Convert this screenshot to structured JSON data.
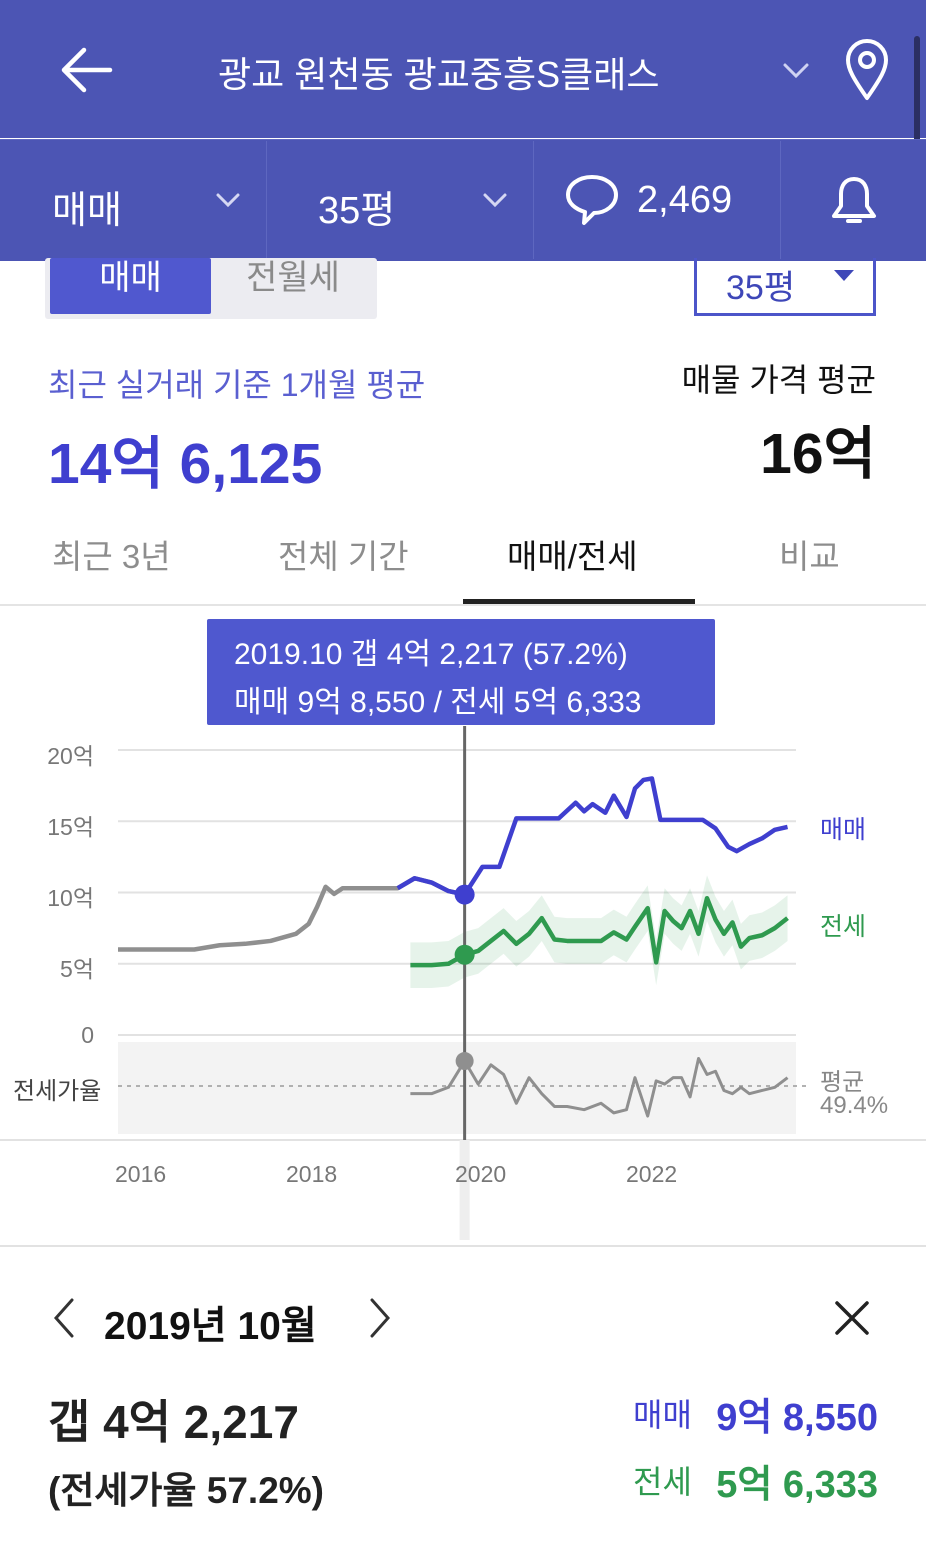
{
  "header": {
    "title": "광교 원천동 광교중흥S클래스",
    "trade_type": "매매",
    "size": "35평",
    "comment_count": "2,469"
  },
  "segment": {
    "sale": "매매",
    "rent": "전월세",
    "size_select": "35평"
  },
  "summary": {
    "recent_label": "최근 실거래 기준 1개월 평균",
    "recent_value": "14억 6,125",
    "listing_label": "매물 가격 평균",
    "listing_value": "16억"
  },
  "tabs": [
    {
      "label": "최근 3년",
      "active": false
    },
    {
      "label": "전체 기간",
      "active": false
    },
    {
      "label": "매매/전세",
      "active": true
    },
    {
      "label": "비교",
      "active": false
    }
  ],
  "tooltip": {
    "line1": "2019.10  갭 4억 2,217 (57.2%)",
    "line2": "매매 9억 8,550 / 전세 5억 6,333"
  },
  "chart_data": {
    "type": "line",
    "y_ticks": [
      "20억",
      "15억",
      "10억",
      "5억",
      "0"
    ],
    "ylim": [
      0,
      20
    ],
    "x_ticks": [
      "2016",
      "2018",
      "2020",
      "2022"
    ],
    "xlim": [
      2015.7,
      2023.7
    ],
    "ratio_label": "전세가율",
    "ratio_avg_label": "평균",
    "ratio_avg_value": "49.4%",
    "ratio_avg": 49.4,
    "selected": {
      "x": 2019.79,
      "sale": 9.855,
      "jeonse": 5.6333,
      "ratio": 57.2
    },
    "series": [
      {
        "name": "매매",
        "color": "#3f3fcf",
        "x": [
          2015.7,
          2016.2,
          2016.6,
          2016.9,
          2017.2,
          2017.5,
          2017.8,
          2017.95,
          2018.05,
          2018.15,
          2018.25,
          2018.35,
          2018.5,
          2018.8,
          2019.0,
          2019.2,
          2019.4,
          2019.6,
          2019.79,
          2020.0,
          2020.2,
          2020.4,
          2020.65,
          2020.9,
          2021.1,
          2021.2,
          2021.3,
          2021.45,
          2021.55,
          2021.7,
          2021.8,
          2021.9,
          2022.0,
          2022.1,
          2022.35,
          2022.6,
          2022.75,
          2022.9,
          2023.0,
          2023.15,
          2023.3,
          2023.45,
          2023.6
        ],
        "y": [
          6.0,
          6.0,
          6.0,
          6.3,
          6.4,
          6.6,
          7.1,
          7.8,
          9.0,
          10.4,
          9.9,
          10.3,
          10.3,
          10.3,
          10.3,
          11.0,
          10.7,
          10.1,
          9.855,
          11.8,
          11.8,
          15.2,
          15.2,
          15.2,
          16.3,
          15.7,
          16.2,
          15.6,
          16.8,
          15.3,
          17.3,
          17.9,
          18.0,
          15.1,
          15.1,
          15.1,
          14.5,
          13.2,
          12.9,
          13.4,
          13.8,
          14.4,
          14.6
        ]
      },
      {
        "name": "전세",
        "color": "#2f9a4f",
        "x": [
          2019.15,
          2019.4,
          2019.6,
          2019.79,
          2019.95,
          2020.1,
          2020.25,
          2020.4,
          2020.55,
          2020.7,
          2020.85,
          2021.0,
          2021.2,
          2021.4,
          2021.55,
          2021.7,
          2021.8,
          2021.95,
          2022.05,
          2022.15,
          2022.25,
          2022.35,
          2022.45,
          2022.55,
          2022.65,
          2022.75,
          2022.85,
          2022.95,
          2023.05,
          2023.15,
          2023.3,
          2023.45,
          2023.6
        ],
        "y": [
          4.9,
          4.9,
          5.0,
          5.6333,
          5.9,
          6.6,
          7.3,
          6.4,
          7.1,
          8.2,
          6.7,
          6.6,
          6.6,
          6.6,
          7.2,
          6.7,
          7.6,
          8.9,
          5.1,
          8.7,
          8.0,
          7.5,
          8.7,
          7.1,
          9.6,
          8.1,
          7.1,
          7.9,
          6.2,
          6.8,
          7.0,
          7.5,
          8.2
        ]
      }
    ],
    "ratio_series": {
      "x": [
        2019.15,
        2019.4,
        2019.6,
        2019.79,
        2019.95,
        2020.1,
        2020.25,
        2020.4,
        2020.55,
        2020.7,
        2020.85,
        2021.0,
        2021.2,
        2021.4,
        2021.55,
        2021.7,
        2021.8,
        2021.95,
        2022.05,
        2022.15,
        2022.25,
        2022.35,
        2022.45,
        2022.55,
        2022.65,
        2022.75,
        2022.85,
        2022.95,
        2023.05,
        2023.15,
        2023.3,
        2023.45,
        2023.6
      ],
      "y": [
        47,
        47,
        49,
        57.2,
        50,
        56,
        53,
        44,
        52,
        47,
        43,
        43,
        42,
        44,
        41,
        42,
        52,
        40,
        51,
        50,
        52,
        52,
        46,
        58,
        53,
        54,
        48,
        47,
        49,
        47,
        48,
        49,
        52
      ]
    }
  },
  "detail": {
    "date": "2019년 10월",
    "gap": "갭 4억 2,217",
    "ratio": "(전세가율 57.2%)",
    "sale_label": "매매",
    "sale_value": "9억 8,550",
    "jeonse_label": "전세",
    "jeonse_value": "5억 6,333"
  },
  "colors": {
    "brand": "#4c55b4",
    "accent": "#4f58cf",
    "sale": "#3f3fcf",
    "jeonse": "#2f9a4f"
  }
}
